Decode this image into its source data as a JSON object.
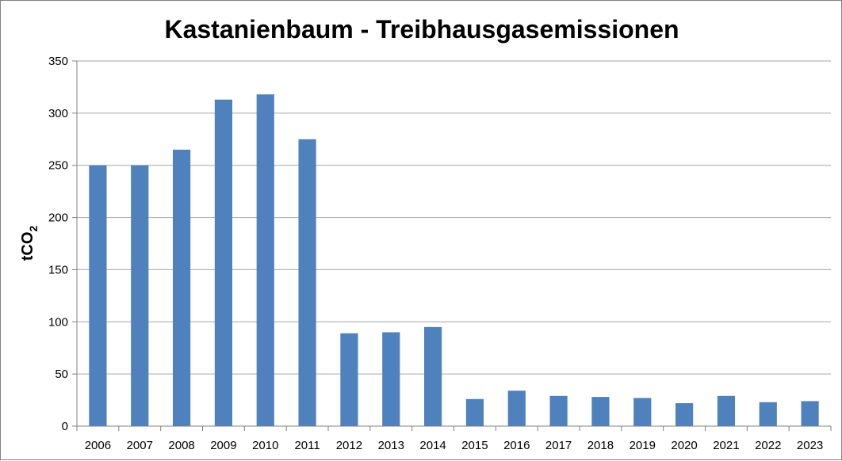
{
  "chart_data": {
    "type": "bar",
    "title": "Kastanienbaum - Treibhausgasemissionen",
    "xlabel": "",
    "ylabel": "tCO",
    "ylabel_subscript": "2",
    "categories": [
      "2006",
      "2007",
      "2008",
      "2009",
      "2010",
      "2011",
      "2012",
      "2013",
      "2014",
      "2015",
      "2016",
      "2017",
      "2018",
      "2019",
      "2020",
      "2021",
      "2022",
      "2023"
    ],
    "series": [
      {
        "values": [
          250,
          250,
          265,
          313,
          318,
          275,
          89,
          90,
          95,
          26,
          34,
          29,
          28,
          27,
          22,
          29,
          23,
          24
        ]
      }
    ],
    "ylim": [
      0,
      350
    ],
    "yticks": [
      "0",
      "50",
      "100",
      "150",
      "200",
      "250",
      "300",
      "350"
    ],
    "grid": true,
    "legend": "none",
    "colors": {
      "bar": "#4F81BD",
      "grid": "#A6A6A6",
      "axis": "#808080"
    }
  }
}
